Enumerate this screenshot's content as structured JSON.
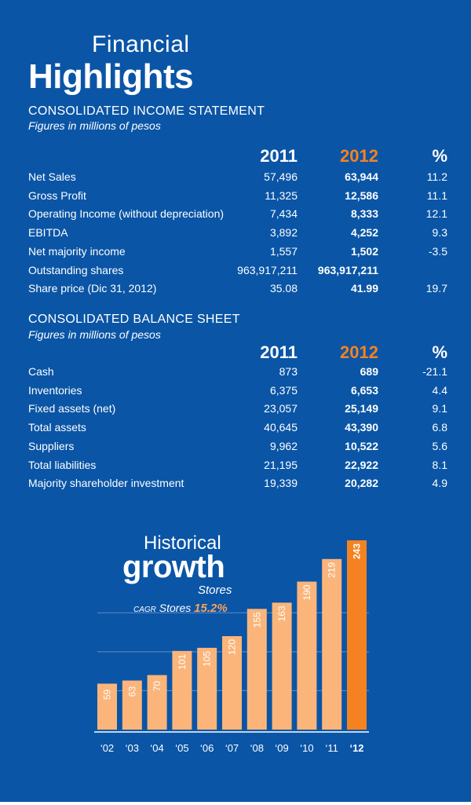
{
  "title": {
    "line1": "Financial",
    "line2": "Highlights"
  },
  "colors": {
    "background": "#0a55a6",
    "accent": "#f58220",
    "bar": "#fbb57a",
    "bar_highlight": "#f58220"
  },
  "income": {
    "title": "CONSOLIDATED INCOME STATEMENT",
    "subtitle": "Figures in millions of pesos",
    "headers": [
      "2011",
      "2012",
      "%"
    ],
    "rows": [
      {
        "label": "Net Sales",
        "y2011": "57,496",
        "y2012": "63,944",
        "pct": "11.2"
      },
      {
        "label": "Gross Profit",
        "y2011": "11,325",
        "y2012": "12,586",
        "pct": "11.1"
      },
      {
        "label": "Operating Income (without depreciation)",
        "y2011": "7,434",
        "y2012": "8,333",
        "pct": "12.1"
      },
      {
        "label": "EBITDA",
        "y2011": "3,892",
        "y2012": "4,252",
        "pct": "9.3"
      },
      {
        "label": "Net majority income",
        "y2011": "1,557",
        "y2012": "1,502",
        "pct": "-3.5"
      },
      {
        "label": "Outstanding shares",
        "y2011": "963,917,211",
        "y2012": "963,917,211",
        "pct": ""
      },
      {
        "label": "Share price (Dic 31, 2012)",
        "y2011": "35.08",
        "y2012": "41.99",
        "pct": "19.7"
      }
    ]
  },
  "balance": {
    "title": "CONSOLIDATED BALANCE SHEET",
    "subtitle": "Figures in millions of pesos",
    "headers": [
      "2011",
      "2012",
      "%"
    ],
    "rows": [
      {
        "label": "Cash",
        "y2011": "873",
        "y2012": "689",
        "pct": "-21.1"
      },
      {
        "label": "Inventories",
        "y2011": "6,375",
        "y2012": "6,653",
        "pct": "4.4"
      },
      {
        "label": "Fixed assets (net)",
        "y2011": "23,057",
        "y2012": "25,149",
        "pct": "9.1"
      },
      {
        "label": "Total assets",
        "y2011": "40,645",
        "y2012": "43,390",
        "pct": "6.8"
      },
      {
        "label": "Suppliers",
        "y2011": "9,962",
        "y2012": "10,522",
        "pct": "5.6"
      },
      {
        "label": "Total liabilities",
        "y2011": "21,195",
        "y2012": "22,922",
        "pct": "8.1"
      },
      {
        "label": "Majority shareholder investment",
        "y2011": "19,339",
        "y2012": "20,282",
        "pct": "4.9"
      }
    ]
  },
  "chart_data": {
    "type": "bar",
    "title_line1": "Historical",
    "title_line2": "growth",
    "series_label": "Stores",
    "cagr_label_small": "CAGR",
    "cagr_label": "Stores",
    "cagr_value": "15.2%",
    "categories": [
      "‘02",
      "‘03",
      "‘04",
      "‘05",
      "‘06",
      "‘07",
      "‘08",
      "‘09",
      "‘10",
      "‘11",
      "‘12"
    ],
    "values": [
      59,
      63,
      70,
      101,
      105,
      120,
      155,
      163,
      190,
      219,
      243
    ],
    "highlight_index": 10,
    "ylim": [
      0,
      243
    ],
    "gridlines": [
      50,
      100,
      150
    ]
  }
}
